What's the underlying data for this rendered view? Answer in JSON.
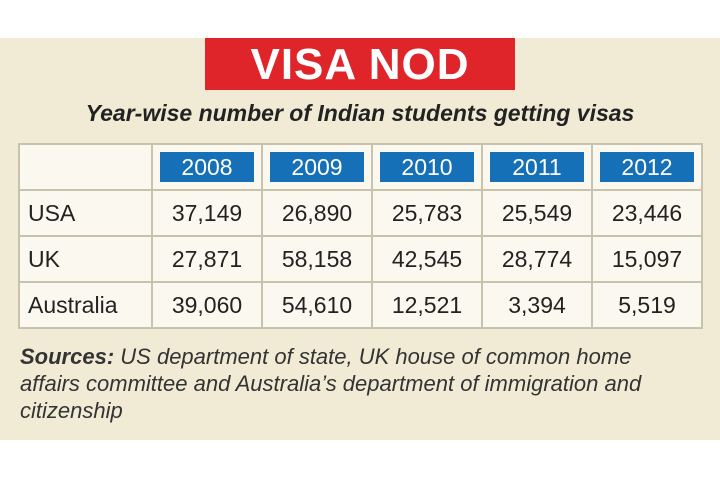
{
  "header": {
    "title": "VISA NOD",
    "subtitle": "Year-wise number of Indian students getting visas"
  },
  "table": {
    "columns": [
      "2008",
      "2009",
      "2010",
      "2011",
      "2012"
    ],
    "rows": [
      [
        "USA",
        "37,149",
        "26,890",
        "25,783",
        "25,549",
        "23,446"
      ],
      [
        "UK",
        "27,871",
        "58,158",
        "42,545",
        "28,774",
        "15,097"
      ],
      [
        "Australia",
        "39,060",
        "54,610",
        "12,521",
        "3,394",
        "5,519"
      ]
    ]
  },
  "sources": {
    "label": "Sources:",
    "text": "US department of state, UK house of common home affairs committee and Australia’s department of immigration and citizenship"
  }
}
